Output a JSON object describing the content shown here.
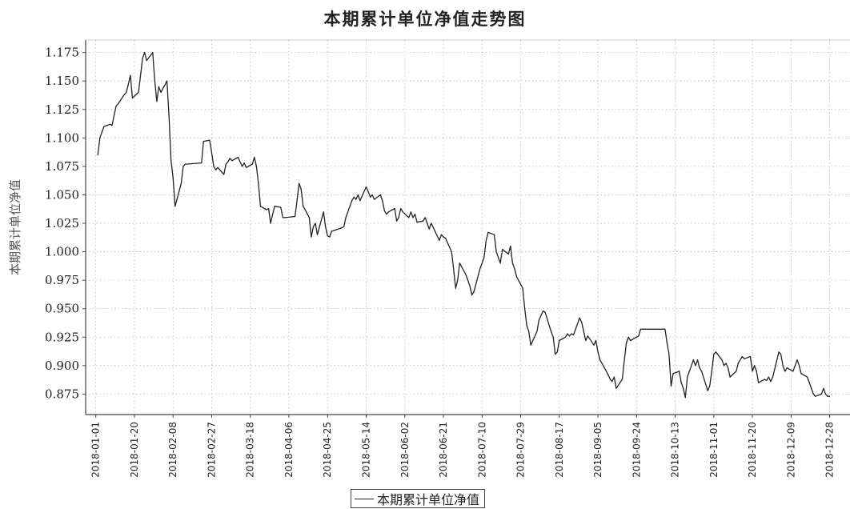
{
  "chart_data": {
    "type": "line",
    "title": "本期累计单位净值走势图",
    "ylabel": "本期累计单位净值",
    "xlabel": "",
    "ylim": [
      0.857,
      1.186
    ],
    "yticks": [
      0.875,
      0.9,
      0.925,
      0.95,
      0.975,
      1.0,
      1.025,
      1.05,
      1.075,
      1.1,
      1.125,
      1.15,
      1.175
    ],
    "ytick_labels": [
      "0.875",
      "0.900",
      "0.925",
      "0.950",
      "0.975",
      "1.000",
      "1.025",
      "1.050",
      "1.075",
      "1.100",
      "1.125",
      "1.150",
      "1.175"
    ],
    "xlim": [
      "2017-12-27",
      "2019-01-07"
    ],
    "xtick_labels": [
      "2018-01-01",
      "2018-01-20",
      "2018-02-08",
      "2018-02-27",
      "2018-03-18",
      "2018-04-06",
      "2018-04-25",
      "2018-05-14",
      "2018-06-02",
      "2018-06-21",
      "2018-07-10",
      "2018-07-29",
      "2018-08-17",
      "2018-09-05",
      "2018-09-24",
      "2018-10-13",
      "2018-11-01",
      "2018-11-20",
      "2018-12-09",
      "2018-12-28"
    ],
    "grid": true,
    "legend_position": "bottom-center",
    "series": [
      {
        "name": "本期累计单位净值",
        "color": "#222222",
        "points": [
          [
            "2018-01-02",
            1.085
          ],
          [
            "2018-01-03",
            1.1
          ],
          [
            "2018-01-04",
            1.105
          ],
          [
            "2018-01-05",
            1.11
          ],
          [
            "2018-01-08",
            1.112
          ],
          [
            "2018-01-09",
            1.111
          ],
          [
            "2018-01-10",
            1.12
          ],
          [
            "2018-01-11",
            1.128
          ],
          [
            "2018-01-12",
            1.13
          ],
          [
            "2018-01-15",
            1.138
          ],
          [
            "2018-01-16",
            1.14
          ],
          [
            "2018-01-17",
            1.147
          ],
          [
            "2018-01-18",
            1.155
          ],
          [
            "2018-01-19",
            1.135
          ],
          [
            "2018-01-22",
            1.14
          ],
          [
            "2018-01-23",
            1.155
          ],
          [
            "2018-01-24",
            1.17
          ],
          [
            "2018-01-25",
            1.175
          ],
          [
            "2018-01-26",
            1.168
          ],
          [
            "2018-01-29",
            1.175
          ],
          [
            "2018-01-30",
            1.15
          ],
          [
            "2018-01-31",
            1.132
          ],
          [
            "2018-02-01",
            1.145
          ],
          [
            "2018-02-02",
            1.14
          ],
          [
            "2018-02-05",
            1.15
          ],
          [
            "2018-02-06",
            1.12
          ],
          [
            "2018-02-07",
            1.08
          ],
          [
            "2018-02-08",
            1.065
          ],
          [
            "2018-02-09",
            1.04
          ],
          [
            "2018-02-12",
            1.06
          ],
          [
            "2018-02-13",
            1.075
          ],
          [
            "2018-02-14",
            1.077
          ],
          [
            "2018-02-22",
            1.078
          ],
          [
            "2018-02-23",
            1.097
          ],
          [
            "2018-02-26",
            1.098
          ],
          [
            "2018-02-27",
            1.087
          ],
          [
            "2018-02-28",
            1.075
          ],
          [
            "2018-03-01",
            1.072
          ],
          [
            "2018-03-02",
            1.074
          ],
          [
            "2018-03-05",
            1.068
          ],
          [
            "2018-03-06",
            1.077
          ],
          [
            "2018-03-07",
            1.079
          ],
          [
            "2018-03-08",
            1.082
          ],
          [
            "2018-03-09",
            1.08
          ],
          [
            "2018-03-12",
            1.083
          ],
          [
            "2018-03-13",
            1.079
          ],
          [
            "2018-03-14",
            1.075
          ],
          [
            "2018-03-15",
            1.078
          ],
          [
            "2018-03-16",
            1.074
          ],
          [
            "2018-03-19",
            1.077
          ],
          [
            "2018-03-20",
            1.083
          ],
          [
            "2018-03-21",
            1.075
          ],
          [
            "2018-03-22",
            1.06
          ],
          [
            "2018-03-23",
            1.04
          ],
          [
            "2018-03-26",
            1.037
          ],
          [
            "2018-03-27",
            1.038
          ],
          [
            "2018-03-28",
            1.025
          ],
          [
            "2018-03-29",
            1.033
          ],
          [
            "2018-03-30",
            1.04
          ],
          [
            "2018-04-02",
            1.039
          ],
          [
            "2018-04-03",
            1.03
          ],
          [
            "2018-04-04",
            1.03
          ],
          [
            "2018-04-09",
            1.031
          ],
          [
            "2018-04-10",
            1.045
          ],
          [
            "2018-04-11",
            1.06
          ],
          [
            "2018-04-12",
            1.055
          ],
          [
            "2018-04-13",
            1.04
          ],
          [
            "2018-04-16",
            1.03
          ],
          [
            "2018-04-17",
            1.013
          ],
          [
            "2018-04-18",
            1.022
          ],
          [
            "2018-04-19",
            1.025
          ],
          [
            "2018-04-20",
            1.015
          ],
          [
            "2018-04-23",
            1.035
          ],
          [
            "2018-04-24",
            1.022
          ],
          [
            "2018-04-25",
            1.014
          ],
          [
            "2018-04-26",
            1.013
          ],
          [
            "2018-04-27",
            1.018
          ],
          [
            "2018-05-02",
            1.021
          ],
          [
            "2018-05-03",
            1.022
          ],
          [
            "2018-05-04",
            1.03
          ],
          [
            "2018-05-07",
            1.045
          ],
          [
            "2018-05-08",
            1.048
          ],
          [
            "2018-05-09",
            1.046
          ],
          [
            "2018-05-10",
            1.05
          ],
          [
            "2018-05-11",
            1.045
          ],
          [
            "2018-05-14",
            1.057
          ],
          [
            "2018-05-15",
            1.053
          ],
          [
            "2018-05-16",
            1.048
          ],
          [
            "2018-05-17",
            1.05
          ],
          [
            "2018-05-18",
            1.046
          ],
          [
            "2018-05-21",
            1.05
          ],
          [
            "2018-05-22",
            1.045
          ],
          [
            "2018-05-23",
            1.036
          ],
          [
            "2018-05-24",
            1.033
          ],
          [
            "2018-05-25",
            1.035
          ],
          [
            "2018-05-28",
            1.038
          ],
          [
            "2018-05-29",
            1.027
          ],
          [
            "2018-05-30",
            1.03
          ],
          [
            "2018-05-31",
            1.038
          ],
          [
            "2018-06-01",
            1.035
          ],
          [
            "2018-06-04",
            1.03
          ],
          [
            "2018-06-05",
            1.035
          ],
          [
            "2018-06-06",
            1.03
          ],
          [
            "2018-06-07",
            1.033
          ],
          [
            "2018-06-08",
            1.026
          ],
          [
            "2018-06-11",
            1.027
          ],
          [
            "2018-06-12",
            1.03
          ],
          [
            "2018-06-13",
            1.025
          ],
          [
            "2018-06-14",
            1.02
          ],
          [
            "2018-06-15",
            1.025
          ],
          [
            "2018-06-19",
            1.01
          ],
          [
            "2018-06-20",
            1.015
          ],
          [
            "2018-06-21",
            1.013
          ],
          [
            "2018-06-22",
            1.012
          ],
          [
            "2018-06-25",
            1.0
          ],
          [
            "2018-06-26",
            0.985
          ],
          [
            "2018-06-27",
            0.968
          ],
          [
            "2018-06-28",
            0.975
          ],
          [
            "2018-06-29",
            0.99
          ],
          [
            "2018-07-02",
            0.98
          ],
          [
            "2018-07-03",
            0.975
          ],
          [
            "2018-07-04",
            0.97
          ],
          [
            "2018-07-05",
            0.962
          ],
          [
            "2018-07-06",
            0.965
          ],
          [
            "2018-07-09",
            0.985
          ],
          [
            "2018-07-10",
            0.99
          ],
          [
            "2018-07-11",
            0.995
          ],
          [
            "2018-07-12",
            1.01
          ],
          [
            "2018-07-13",
            1.017
          ],
          [
            "2018-07-16",
            1.015
          ],
          [
            "2018-07-17",
            1.0
          ],
          [
            "2018-07-18",
            0.995
          ],
          [
            "2018-07-19",
            0.99
          ],
          [
            "2018-07-20",
            1.002
          ],
          [
            "2018-07-23",
            0.998
          ],
          [
            "2018-07-24",
            1.005
          ],
          [
            "2018-07-25",
            0.99
          ],
          [
            "2018-07-26",
            0.985
          ],
          [
            "2018-07-27",
            0.978
          ],
          [
            "2018-07-30",
            0.968
          ],
          [
            "2018-07-31",
            0.95
          ],
          [
            "2018-08-01",
            0.935
          ],
          [
            "2018-08-02",
            0.93
          ],
          [
            "2018-08-03",
            0.918
          ],
          [
            "2018-08-06",
            0.93
          ],
          [
            "2018-08-07",
            0.94
          ],
          [
            "2018-08-08",
            0.944
          ],
          [
            "2018-08-09",
            0.948
          ],
          [
            "2018-08-10",
            0.947
          ],
          [
            "2018-08-13",
            0.93
          ],
          [
            "2018-08-14",
            0.925
          ],
          [
            "2018-08-15",
            0.91
          ],
          [
            "2018-08-16",
            0.912
          ],
          [
            "2018-08-17",
            0.922
          ],
          [
            "2018-08-20",
            0.925
          ],
          [
            "2018-08-21",
            0.928
          ],
          [
            "2018-08-22",
            0.926
          ],
          [
            "2018-08-23",
            0.928
          ],
          [
            "2018-08-24",
            0.927
          ],
          [
            "2018-08-27",
            0.942
          ],
          [
            "2018-08-28",
            0.938
          ],
          [
            "2018-08-29",
            0.93
          ],
          [
            "2018-08-30",
            0.922
          ],
          [
            "2018-08-31",
            0.926
          ],
          [
            "2018-09-03",
            0.918
          ],
          [
            "2018-09-04",
            0.922
          ],
          [
            "2018-09-05",
            0.912
          ],
          [
            "2018-09-06",
            0.905
          ],
          [
            "2018-09-07",
            0.902
          ],
          [
            "2018-09-10",
            0.892
          ],
          [
            "2018-09-11",
            0.888
          ],
          [
            "2018-09-12",
            0.886
          ],
          [
            "2018-09-13",
            0.89
          ],
          [
            "2018-09-14",
            0.88
          ],
          [
            "2018-09-17",
            0.888
          ],
          [
            "2018-09-18",
            0.905
          ],
          [
            "2018-09-19",
            0.92
          ],
          [
            "2018-09-20",
            0.925
          ],
          [
            "2018-09-21",
            0.922
          ],
          [
            "2018-09-25",
            0.926
          ],
          [
            "2018-09-26",
            0.932
          ],
          [
            "2018-09-27",
            0.932
          ],
          [
            "2018-09-28",
            0.932
          ],
          [
            "2018-10-08",
            0.932
          ],
          [
            "2018-10-09",
            0.92
          ],
          [
            "2018-10-10",
            0.91
          ],
          [
            "2018-10-11",
            0.882
          ],
          [
            "2018-10-12",
            0.893
          ],
          [
            "2018-10-15",
            0.895
          ],
          [
            "2018-10-16",
            0.885
          ],
          [
            "2018-10-17",
            0.88
          ],
          [
            "2018-10-18",
            0.872
          ],
          [
            "2018-10-19",
            0.89
          ],
          [
            "2018-10-22",
            0.905
          ],
          [
            "2018-10-23",
            0.9
          ],
          [
            "2018-10-24",
            0.905
          ],
          [
            "2018-10-25",
            0.898
          ],
          [
            "2018-10-26",
            0.895
          ],
          [
            "2018-10-29",
            0.878
          ],
          [
            "2018-10-30",
            0.882
          ],
          [
            "2018-10-31",
            0.895
          ],
          [
            "2018-11-01",
            0.91
          ],
          [
            "2018-11-02",
            0.912
          ],
          [
            "2018-11-05",
            0.905
          ],
          [
            "2018-11-06",
            0.9
          ],
          [
            "2018-11-07",
            0.902
          ],
          [
            "2018-11-08",
            0.898
          ],
          [
            "2018-11-09",
            0.89
          ],
          [
            "2018-11-12",
            0.895
          ],
          [
            "2018-11-13",
            0.902
          ],
          [
            "2018-11-14",
            0.905
          ],
          [
            "2018-11-15",
            0.908
          ],
          [
            "2018-11-16",
            0.906
          ],
          [
            "2018-11-19",
            0.908
          ],
          [
            "2018-11-20",
            0.895
          ],
          [
            "2018-11-21",
            0.9
          ],
          [
            "2018-11-22",
            0.895
          ],
          [
            "2018-11-23",
            0.885
          ],
          [
            "2018-11-26",
            0.888
          ],
          [
            "2018-11-27",
            0.887
          ],
          [
            "2018-11-28",
            0.89
          ],
          [
            "2018-11-29",
            0.886
          ],
          [
            "2018-11-30",
            0.89
          ],
          [
            "2018-12-03",
            0.912
          ],
          [
            "2018-12-04",
            0.91
          ],
          [
            "2018-12-05",
            0.9
          ],
          [
            "2018-12-06",
            0.895
          ],
          [
            "2018-12-07",
            0.898
          ],
          [
            "2018-12-10",
            0.895
          ],
          [
            "2018-12-11",
            0.9
          ],
          [
            "2018-12-12",
            0.905
          ],
          [
            "2018-12-13",
            0.9
          ],
          [
            "2018-12-14",
            0.893
          ],
          [
            "2018-12-17",
            0.89
          ],
          [
            "2018-12-18",
            0.885
          ],
          [
            "2018-12-19",
            0.88
          ],
          [
            "2018-12-20",
            0.875
          ],
          [
            "2018-12-21",
            0.873
          ],
          [
            "2018-12-24",
            0.875
          ],
          [
            "2018-12-25",
            0.88
          ],
          [
            "2018-12-26",
            0.875
          ],
          [
            "2018-12-27",
            0.873
          ],
          [
            "2018-12-28",
            0.873
          ]
        ]
      }
    ]
  }
}
